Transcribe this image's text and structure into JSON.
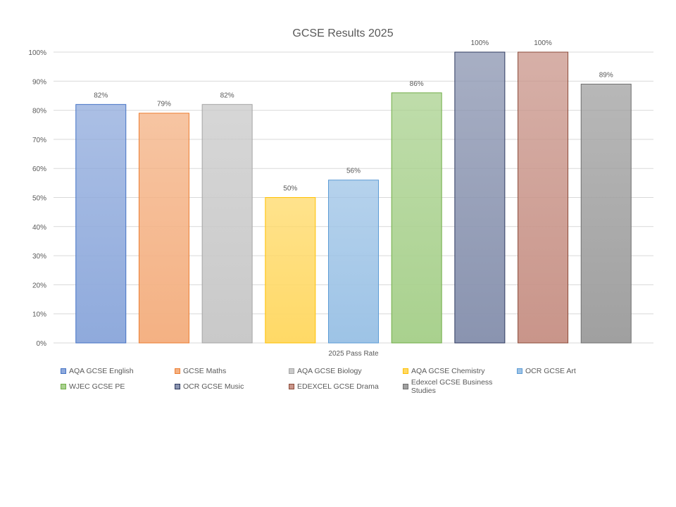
{
  "chart_data": {
    "type": "bar",
    "title": "GCSE Results 2025",
    "categories": [
      "2025 Pass Rate"
    ],
    "ylim": [
      0,
      100
    ],
    "yticks": [
      0,
      10,
      20,
      30,
      40,
      50,
      60,
      70,
      80,
      90,
      100
    ],
    "ytick_suffix": "%",
    "grid": true,
    "legend_position": "bottom",
    "series": [
      {
        "name": "AQA GCSE English",
        "value": 82,
        "label": "82%",
        "color": "#8faadc",
        "edge": "#4472c4"
      },
      {
        "name": "GCSE Maths",
        "value": 79,
        "label": "79%",
        "color": "#f4b183",
        "edge": "#ed7d31"
      },
      {
        "name": "AQA GCSE Biology",
        "value": 82,
        "label": "82%",
        "color": "#c9c9c9",
        "edge": "#a5a5a5"
      },
      {
        "name": "AQA GCSE Chemistry",
        "value": 50,
        "label": "50%",
        "color": "#ffd966",
        "edge": "#ffc000"
      },
      {
        "name": "OCR GCSE Art",
        "value": 56,
        "label": "56%",
        "color": "#9dc3e6",
        "edge": "#5b9bd5"
      },
      {
        "name": "WJEC GCSE PE",
        "value": 86,
        "label": "86%",
        "color": "#a9d18e",
        "edge": "#70ad47"
      },
      {
        "name": "OCR GCSE Music",
        "value": 100,
        "label": "100%",
        "color": "#8a94b0",
        "edge": "#2f3a5f"
      },
      {
        "name": "EDEXCEL GCSE Drama",
        "value": 100,
        "label": "100%",
        "color": "#c9958a",
        "edge": "#8b4a38"
      },
      {
        "name": "Edexcel GCSE Business Studies",
        "value": 89,
        "label": "89%",
        "color": "#a0a0a0",
        "edge": "#6f6f6f"
      }
    ]
  }
}
